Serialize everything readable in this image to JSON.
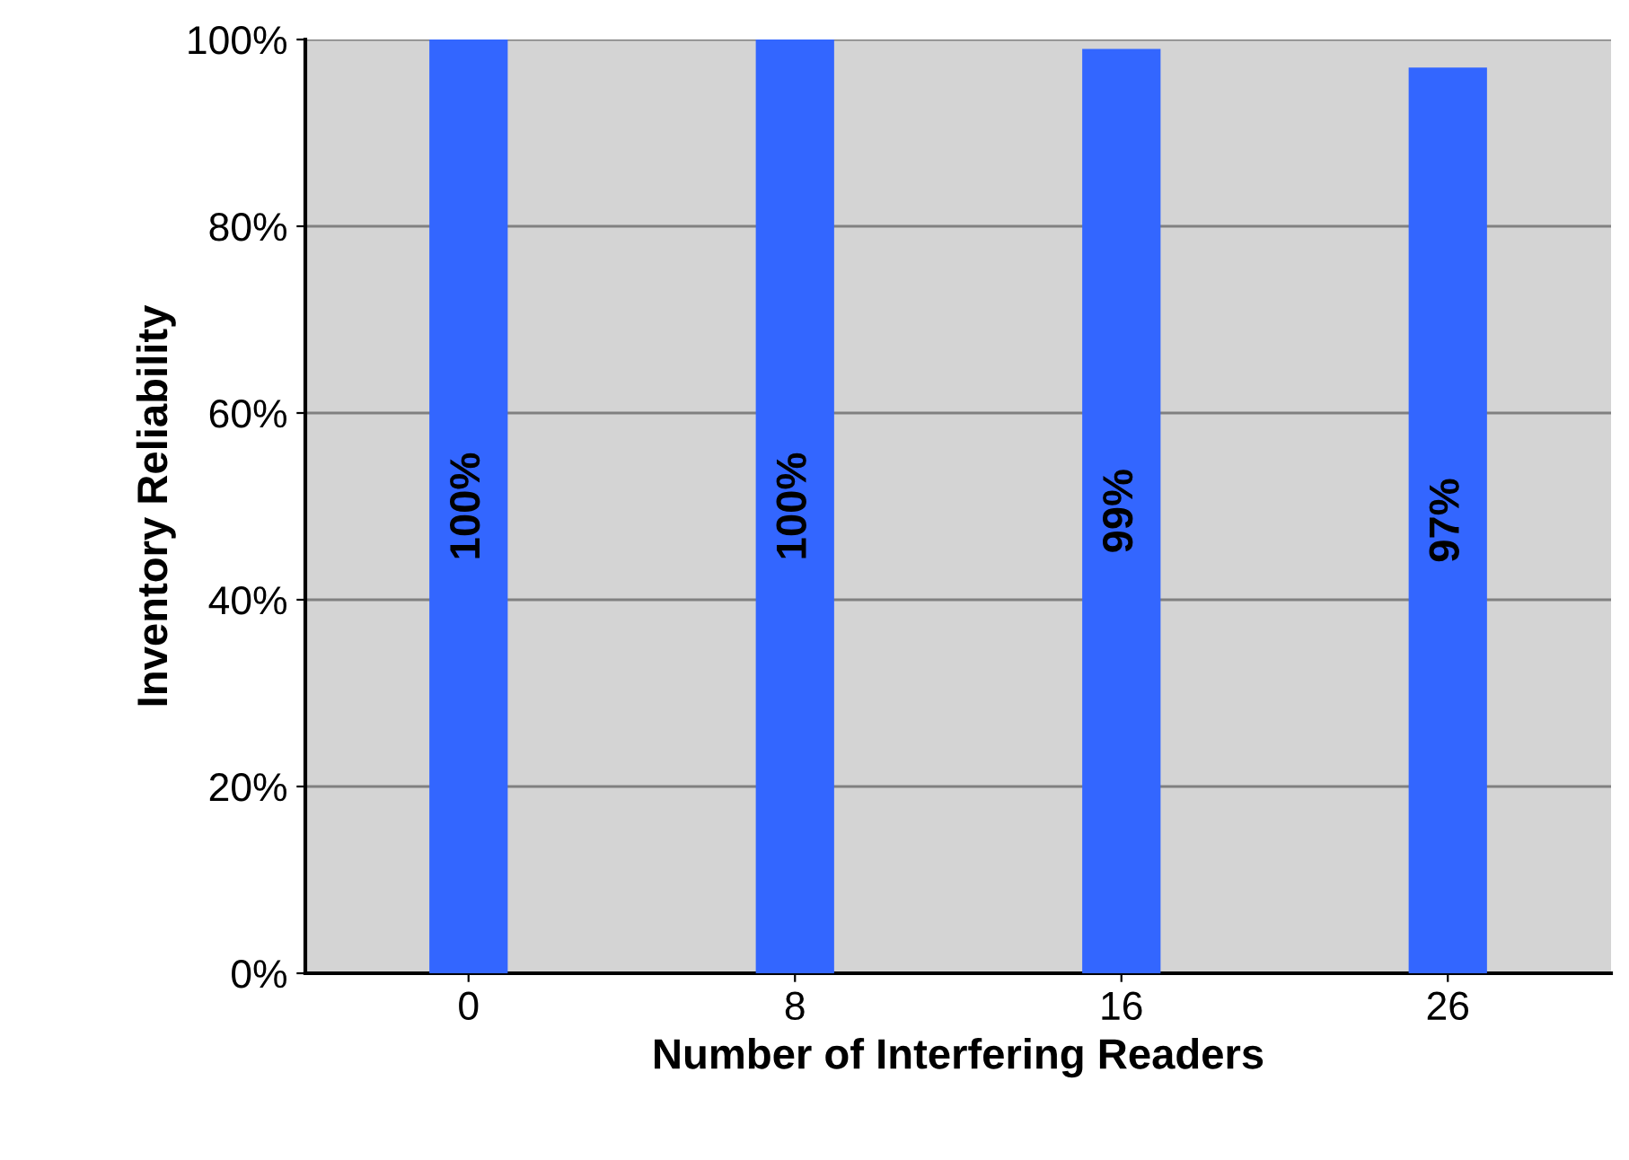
{
  "chart_data": {
    "type": "bar",
    "xlabel": "Number of Interfering Readers",
    "ylabel": "Inventory Reliability",
    "categories": [
      "0",
      "8",
      "16",
      "26"
    ],
    "values": [
      100,
      100,
      99,
      97
    ],
    "value_labels": [
      "100%",
      "100%",
      "99%",
      "97%"
    ],
    "color": "#3366ff",
    "ylim": [
      0,
      100
    ],
    "yticks": [
      {
        "value": 0,
        "label": "0%"
      },
      {
        "value": 20,
        "label": "20%"
      },
      {
        "value": 40,
        "label": "40%"
      },
      {
        "value": 60,
        "label": "60%"
      },
      {
        "value": 80,
        "label": "80%"
      },
      {
        "value": 100,
        "label": "100%"
      }
    ],
    "grid": "y",
    "legend": false
  }
}
